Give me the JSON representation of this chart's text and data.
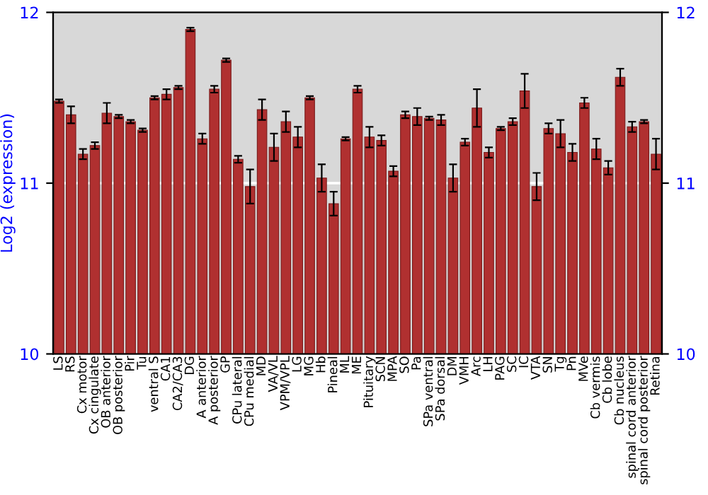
{
  "chart_data": {
    "type": "bar",
    "ylabel": "Log2 (expression)",
    "categories": [
      "LS",
      "RS",
      "Cx motor",
      "Cx cingulate",
      "OB anterior",
      "OB posterior",
      "Pir",
      "Tu",
      "ventral S",
      "CA1",
      "CA2/CA3",
      "DG",
      "A anterior",
      "A posterior",
      "GP",
      "CPu lateral",
      "CPu medial",
      "MD",
      "VA/VL",
      "VPM/VPL",
      "LG",
      "MG",
      "Hb",
      "Pineal",
      "ML",
      "ME",
      "Pituitary",
      "SCN",
      "MPA",
      "SO",
      "Pa",
      "SPa ventral",
      "SPa dorsal",
      "DM",
      "VMH",
      "Arc",
      "LH",
      "PAG",
      "SC",
      "IC",
      "VTA",
      "SN",
      "Tg",
      "Pn",
      "MVe",
      "Cb vermis",
      "Cb lobe",
      "Cb nucleus",
      "spinal cord anterior",
      "spinal cord posterior",
      "Retina"
    ],
    "values": [
      11.48,
      11.4,
      11.17,
      11.22,
      11.41,
      11.39,
      11.36,
      11.31,
      11.5,
      11.52,
      11.56,
      11.9,
      11.26,
      11.55,
      11.72,
      11.14,
      10.98,
      11.43,
      11.21,
      11.36,
      11.27,
      11.5,
      11.03,
      10.88,
      11.26,
      11.55,
      11.27,
      11.25,
      11.07,
      11.4,
      11.39,
      11.38,
      11.37,
      11.03,
      11.24,
      11.44,
      11.18,
      11.32,
      11.36,
      11.54,
      10.98,
      11.32,
      11.29,
      11.18,
      11.47,
      11.2,
      11.09,
      11.62,
      11.33,
      11.36,
      11.17
    ],
    "errors": [
      0.01,
      0.05,
      0.03,
      0.02,
      0.06,
      0.01,
      0.01,
      0.01,
      0.01,
      0.03,
      0.01,
      0.01,
      0.03,
      0.02,
      0.01,
      0.02,
      0.1,
      0.06,
      0.08,
      0.06,
      0.06,
      0.01,
      0.08,
      0.07,
      0.01,
      0.02,
      0.06,
      0.03,
      0.03,
      0.02,
      0.05,
      0.01,
      0.03,
      0.08,
      0.02,
      0.11,
      0.03,
      0.01,
      0.02,
      0.1,
      0.08,
      0.03,
      0.08,
      0.05,
      0.03,
      0.06,
      0.04,
      0.05,
      0.03,
      0.01,
      0.09
    ],
    "color": "#b03030",
    "ylim": [
      10,
      12
    ],
    "yticks": [
      10,
      11,
      12
    ],
    "y2lim": [
      10,
      12
    ],
    "y2ticks": [
      10,
      11,
      12
    ],
    "ref_lines": [
      {
        "axis": "y",
        "value": 11,
        "color": "#ffffff"
      }
    ]
  }
}
